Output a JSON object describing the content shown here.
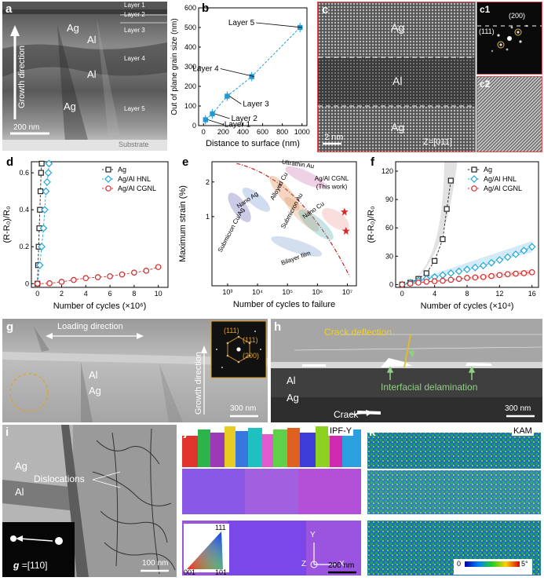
{
  "a": {
    "letter": "a",
    "layers": [
      "Layer 1",
      "Layer 2",
      "Layer 3",
      "Layer 4",
      "Layer 5"
    ],
    "labels": {
      "ag1": "Ag",
      "al1": "Al",
      "al2": "Al",
      "ag2": "Ag"
    },
    "growth": "Growth direction",
    "scale": "200 nm",
    "substrate": "Substrate"
  },
  "b": {
    "letter": "b",
    "ylabel": "Out of plane grain size (nm)",
    "xlabel": "Distance to surface (nm)",
    "xticks": [
      "0",
      "200",
      "400",
      "600",
      "800",
      "1000"
    ],
    "yticks": [
      "0",
      "100",
      "200",
      "300",
      "400",
      "500",
      "600"
    ],
    "point_labels": [
      "Layer 1",
      "Layer 2",
      "Layer 3",
      "Layer 4",
      "Layer 5"
    ]
  },
  "c": {
    "letter": "c",
    "labels": {
      "ag1": "Ag",
      "al": "Al",
      "ag2": "Ag"
    },
    "scale": "2 nm",
    "zone": "Z=[011]"
  },
  "c1": {
    "letter": "c1",
    "spot1": "(200)",
    "spot2": "(111)"
  },
  "c2": {
    "letter": "c2"
  },
  "d": {
    "letter": "d",
    "ylabel": "(R-R₀)/R₀",
    "xlabel": "Number of cycles (×10⁶)",
    "xticks": [
      "0",
      "2",
      "4",
      "6",
      "8",
      "10"
    ],
    "yticks": [
      "0",
      "0.2",
      "0.4",
      "0.6"
    ],
    "legend": [
      "Ag",
      "Ag/Al HNL",
      "Ag/Al CGNL"
    ]
  },
  "e": {
    "letter": "e",
    "ylabel": "Maximum strain (%)",
    "xlabel": "Number of cycles to failure",
    "xticks": [
      "10³",
      "10⁴",
      "10⁵",
      "10⁶",
      "10⁷"
    ],
    "yticks": [
      "1",
      "2"
    ],
    "groups": [
      "Ultrathin Au",
      "Ag/Al CGNL",
      "(This work)",
      "Nano Ag",
      "Alloyed Cu",
      "Submicron Cu/Ag",
      "Submicron Au",
      "Nano Cu",
      "Bilayer film"
    ]
  },
  "f": {
    "letter": "f",
    "ylabel": "(R-R₀)/R₀",
    "xlabel": "Number of cycles (×10⁴)",
    "xticks": [
      "0",
      "4",
      "8",
      "12",
      "16"
    ],
    "yticks": [
      "0",
      "30",
      "60",
      "90",
      "120"
    ],
    "legend": [
      "Ag",
      "Ag/Al HNL",
      "Ag/Al CGNL"
    ]
  },
  "g": {
    "letter": "g",
    "loading": "Loading direction",
    "al": "Al",
    "ag": "Ag",
    "growth": "Growth direction",
    "scale": "300 nm",
    "spots": [
      "(111)",
      "(111)",
      "(200)"
    ]
  },
  "h": {
    "letter": "h",
    "deflection": "Crack deflection",
    "delamination": "Interfacial delamination",
    "al": "Al",
    "ag": "Ag",
    "crack": "Crack",
    "scale": "300 nm"
  },
  "i": {
    "letter": "i",
    "ag": "Ag",
    "al": "Al",
    "dislocations": "Dislocations",
    "g_symbol": "g",
    "g_value": "=[110]",
    "scale": "100 nm"
  },
  "j": {
    "letter": "j",
    "tag": "IPF-Y",
    "tri": [
      "111",
      "001",
      "101"
    ],
    "axes": [
      "Y",
      "X",
      "Z"
    ],
    "scale": "200 nm"
  },
  "k": {
    "letter": "k",
    "tag": "KAM",
    "cbar_min": "0",
    "cbar_max": "5°"
  },
  "chart_data": [
    {
      "panel": "b",
      "type": "scatter",
      "xlabel": "Distance to surface (nm)",
      "ylabel": "Out of plane grain size (nm)",
      "xlim": [
        -50,
        1050
      ],
      "ylim": [
        0,
        600
      ],
      "x": [
        20,
        90,
        240,
        490,
        980
      ],
      "y": [
        30,
        60,
        150,
        250,
        500
      ],
      "point_labels": [
        "Layer 1",
        "Layer 2",
        "Layer 3",
        "Layer 4",
        "Layer 5"
      ],
      "color": "#1f9ad6"
    },
    {
      "panel": "d",
      "type": "line",
      "xlabel": "Number of cycles (×10⁶)",
      "ylabel": "(R-R₀)/R₀",
      "xlim": [
        -0.5,
        10.8
      ],
      "ylim": [
        -0.02,
        0.66
      ],
      "series": [
        {
          "name": "Ag",
          "x": [
            0,
            0.05,
            0.1,
            0.15,
            0.2,
            0.25,
            0.3,
            0.35
          ],
          "y": [
            0,
            0.1,
            0.2,
            0.3,
            0.4,
            0.5,
            0.6,
            0.65
          ],
          "color": "#222222"
        },
        {
          "name": "Ag/Al HNL",
          "x": [
            0,
            0.2,
            0.35,
            0.5,
            0.6,
            0.7,
            0.8,
            0.9,
            0.95
          ],
          "y": [
            0,
            0.1,
            0.2,
            0.3,
            0.4,
            0.5,
            0.55,
            0.6,
            0.65
          ],
          "color": "#1fa7d8"
        },
        {
          "name": "Ag/Al CGNL",
          "x": [
            0,
            1,
            2,
            3,
            4,
            5,
            6,
            7,
            8,
            9,
            10
          ],
          "y": [
            0,
            0.002,
            0.01,
            0.02,
            0.03,
            0.035,
            0.04,
            0.05,
            0.06,
            0.07,
            0.09
          ],
          "color": "#d42a2a"
        }
      ],
      "legend": "top-right"
    },
    {
      "panel": "e",
      "type": "scatter",
      "xlabel": "Number of cycles to failure",
      "ylabel": "Maximum strain (%)",
      "x_scale": "log",
      "y_scale": "log",
      "xlim": [
        300,
        20000000
      ],
      "ylim": [
        0.25,
        3
      ],
      "series": [
        {
          "name": "Ag/Al CGNL",
          "x": [
            8000000,
            9000000
          ],
          "y": [
            1.1,
            0.75
          ],
          "color": "#d42a2a"
        }
      ]
    },
    {
      "panel": "f",
      "type": "line",
      "xlabel": "Number of cycles (×10⁴)",
      "ylabel": "(R-R₀)/R₀",
      "xlim": [
        -0.8,
        16.8
      ],
      "ylim": [
        -3,
        130
      ],
      "series": [
        {
          "name": "Ag",
          "x": [
            0,
            1,
            2,
            3,
            4,
            5,
            5.5,
            6
          ],
          "y": [
            0,
            2,
            6,
            12,
            25,
            48,
            80,
            110
          ],
          "color": "#222222"
        },
        {
          "name": "Ag/Al HNL",
          "x": [
            0,
            1,
            2,
            3,
            4,
            5,
            6,
            7,
            8,
            9,
            10,
            11,
            12,
            13,
            14,
            15,
            16
          ],
          "y": [
            0,
            2,
            4,
            6,
            8,
            10,
            12,
            14,
            16,
            18,
            20,
            23,
            26,
            29,
            32,
            36,
            40
          ],
          "color": "#1fa7d8"
        },
        {
          "name": "Ag/Al CGNL",
          "x": [
            0,
            1,
            2,
            3,
            4,
            5,
            6,
            7,
            8,
            9,
            10,
            11,
            12,
            13,
            14,
            15,
            16
          ],
          "y": [
            0,
            1,
            2,
            3,
            3.5,
            4,
            5,
            6,
            7,
            7.5,
            8,
            9,
            10,
            11,
            11.5,
            12,
            13
          ],
          "color": "#d42a2a"
        }
      ],
      "legend": "top-right"
    }
  ]
}
